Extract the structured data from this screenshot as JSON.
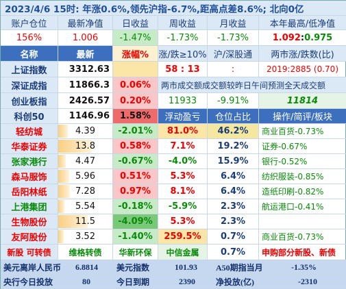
{
  "title": "2023/4/6   15时: 年涨0.6%,领先沪指-6.7%,距高点差8.6%; 北向0亿",
  "account": {
    "headers": [
      "账户仓位",
      "最新净值",
      "日收益",
      "周收益",
      "月收益",
      "本年最高/低净值"
    ],
    "values": {
      "position": "156%",
      "nav": "1.006",
      "day": "-1.47%",
      "week": "-1.73%",
      "month": "-1.73%",
      "year_high": "1.092",
      "year_sep": ": ",
      "year_low": "0.975"
    }
  },
  "table_headers": [
    "名称",
    "最新",
    "涨幅%",
    "涨/跌≥10%",
    "沪/深股通",
    "两市涨/跌数(比)"
  ],
  "indices": [
    {
      "name": "上证指数",
      "last": "3312.63",
      "chg": ""
    },
    {
      "name": "深证成指",
      "last": "11866.3",
      "chg": "0.06%"
    },
    {
      "name": "创业板指",
      "last": "2426.57",
      "chg": "0.20%"
    },
    {
      "name": "科创50",
      "last": "1146.96",
      "chg": "1.58%"
    }
  ],
  "market": {
    "limit_updown": "58 : 13",
    "hk_connect": ":",
    "updown_ratio": "2019:2885 (0.70)",
    "scroll_text": "两市成交额成交额较昨日午间预测全天成交额",
    "turnover": "11933",
    "turnover_chg": "-9.91%",
    "forecast": "11814"
  },
  "holdings_headers": [
    "浮动盈亏",
    "仓位占比",
    "操作/简评/板块"
  ],
  "holdings": [
    {
      "name": "轻纺城",
      "last": "4.39",
      "bar": 0.18,
      "chg": "-2.01%",
      "pnl": "81.0%",
      "weight": "46.2%",
      "note": "商业百货-0.73%",
      "color": "red"
    },
    {
      "name": "华泰证券",
      "last": "13.8",
      "bar": 0.62,
      "chg": "0.58%",
      "pnl": "7.1%",
      "weight": "19.2%",
      "note": "证券-0.67%",
      "color": "red"
    },
    {
      "name": "张家港行",
      "last": "4.47",
      "bar": 0.14,
      "chg": "-0.67%",
      "pnl": "-4.0%",
      "weight": "15.9%",
      "note": "银行-0.52%",
      "color": "green"
    },
    {
      "name": "森马服饰",
      "last": "5.96",
      "bar": 0.2,
      "chg": "0.51%",
      "pnl": "5.3%",
      "weight": "6.4%",
      "note": "纺织服装-0.85%",
      "color": "red"
    },
    {
      "name": "岳阳林纸",
      "last": "7.28",
      "bar": 0.22,
      "chg": "0.97%",
      "pnl": "8.1%",
      "weight": "6.4%",
      "note": "造纸印刷-0.82%",
      "color": "red"
    },
    {
      "name": "上港集团",
      "last": "5.54",
      "bar": 0.12,
      "chg": "-0.18%",
      "pnl": "-5.9%",
      "weight": "2.3%",
      "note": "航运港口-0.41%",
      "color": "green"
    },
    {
      "name": "生物股份",
      "last": "11.5",
      "bar": 0.55,
      "chg": "-4.09%",
      "pnl": "5.3%",
      "weight": "2.3%",
      "note": "",
      "color": "red"
    },
    {
      "name": "友阿股份",
      "last": "3.52",
      "bar": 0.1,
      "chg": "-1.40%",
      "pnl": "259.5%",
      "weight": "0.7%",
      "note": "商业百货-0.73%",
      "color": "red"
    }
  ],
  "newstock": {
    "label": "新股 可转债",
    "c2": "维格转债",
    "c3": "华新环保",
    "c4": "中信金属",
    "c5": "0.7%",
    "c6": "申购部分新股、新债"
  },
  "footer1": {
    "l1": "美元离岸人民币",
    "v1": "6.8814",
    "l2": "美元指数",
    "v2": "101.93",
    "l3": "A50期指当月",
    "v3": "-1.35%"
  },
  "footer2": {
    "l1": "央行今日投放",
    "v1": "80",
    "l2": "今日到期",
    "v2": "2390",
    "l3": "净投放(亿)",
    "v3": "-2310"
  }
}
